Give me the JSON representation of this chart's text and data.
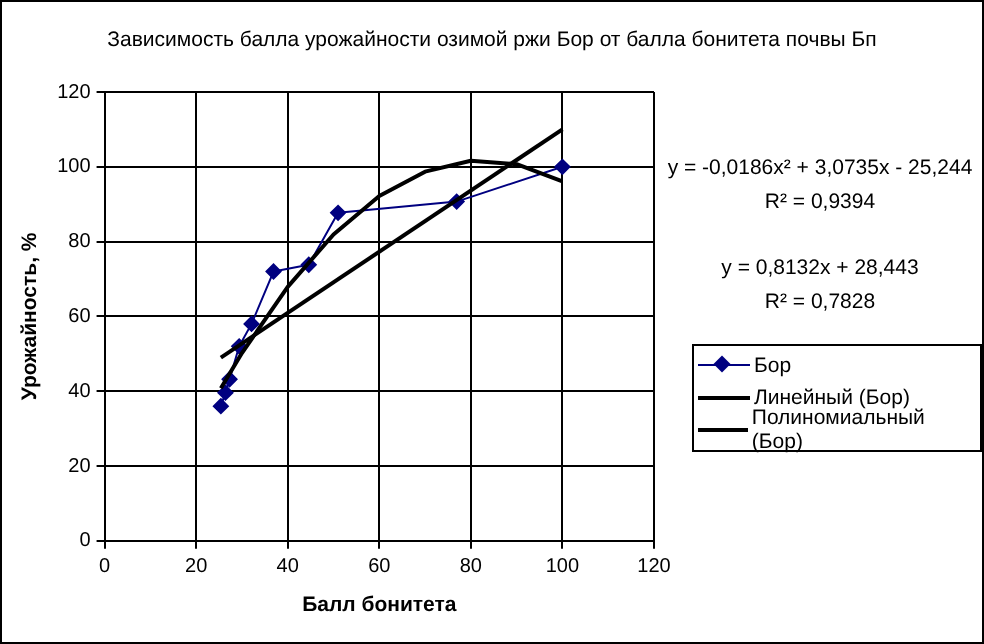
{
  "chart_data": {
    "type": "line",
    "title": "Зависимость балла урожайности озимой ржи Бор от балла бонитета почвы Бп",
    "xlabel": "Балл бонитета",
    "ylabel": "Урожайность, %",
    "xlim": [
      0,
      120
    ],
    "xticks": [
      0,
      20,
      40,
      60,
      80,
      100,
      120
    ],
    "ylim": [
      0,
      120
    ],
    "yticks": [
      0,
      20,
      40,
      60,
      80,
      100,
      120
    ],
    "grid": true,
    "legend": "right",
    "annotations": [
      "y = -0,0186x² + 3,0735x - 25,244",
      "R² = 0,9394",
      "y = 0,8132x + 28,443",
      "R² = 0,7828"
    ],
    "series": [
      {
        "name": "Бор",
        "color": "#000080",
        "marker": "diamond",
        "x": [
          25.4,
          26.4,
          27.3,
          29.4,
          32.1,
          36.9,
          44.6,
          51,
          76.9,
          100
        ],
        "values": [
          36,
          39.6,
          43.2,
          52,
          58,
          72,
          73.8,
          87.7,
          90.7,
          100
        ]
      },
      {
        "name": "Линейный (Бор)",
        "color": "#000000",
        "marker": "none",
        "x": [
          25.4,
          100
        ],
        "values": [
          49,
          110
        ]
      },
      {
        "name": "Полиномиальный (Бор)",
        "color": "#000000",
        "marker": "none",
        "x": [
          25.4,
          30,
          40,
          50,
          60,
          70,
          80,
          90,
          100
        ],
        "values": [
          40.8,
          50.2,
          67.9,
          81.9,
          92.2,
          98.7,
          101.6,
          100.7,
          96.1
        ]
      }
    ]
  }
}
